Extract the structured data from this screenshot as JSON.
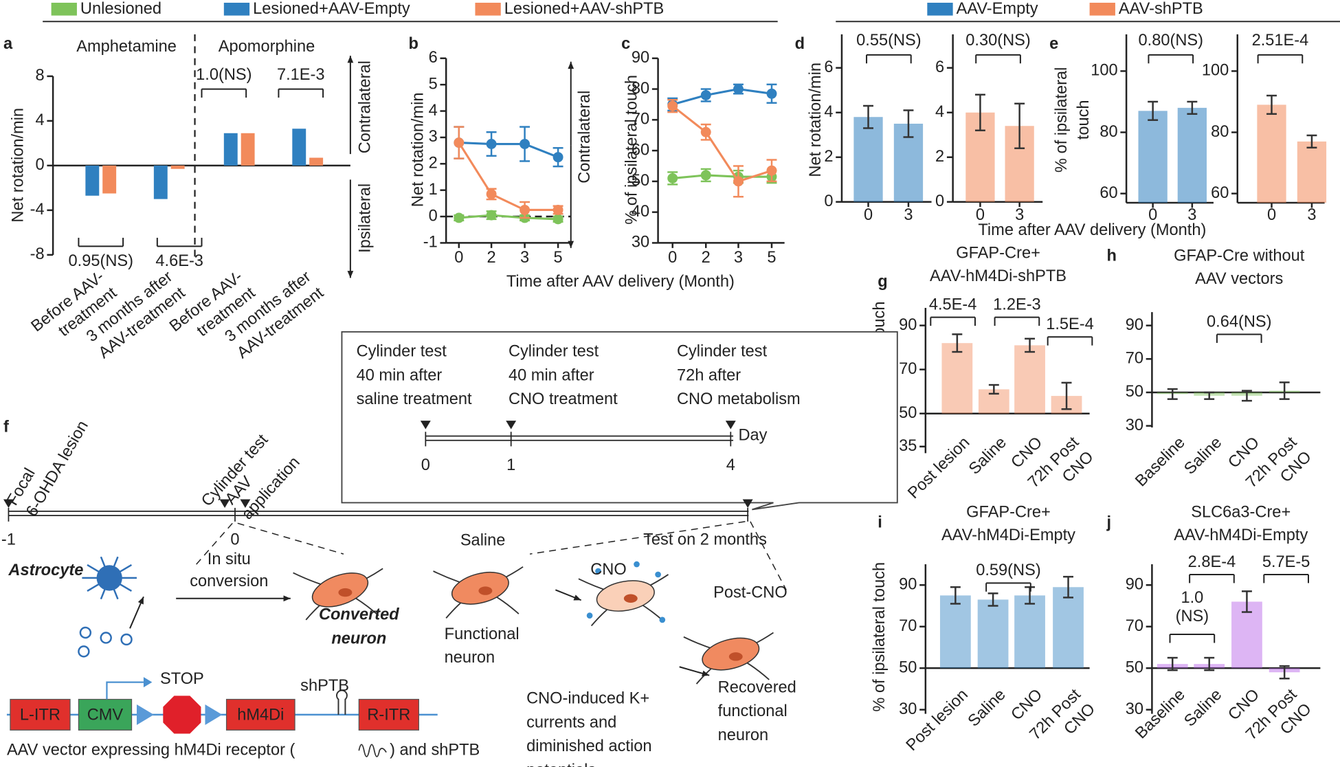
{
  "panel_labels": [
    "a",
    "b",
    "c",
    "d",
    "e",
    "f",
    "g",
    "h",
    "i",
    "j"
  ],
  "chart_data": [
    {
      "type": "bar",
      "group_labels": [
        "Amphetamine",
        "Apomorphine"
      ],
      "categories": [
        "Before AAV-\ntreatment",
        "3 months after\nAAV-treatment",
        "Before AAV-\ntreatment",
        "3 months after\nAAV-treatment"
      ],
      "ylabel": "Net rotation/min",
      "series": [
        {
          "name": "Unlesioned",
          "color": "#7ec35a",
          "values": [
            0,
            0,
            null,
            0
          ]
        },
        {
          "name": "Lesioned+AAV-Empty",
          "color": "#2f80c0",
          "values": [
            -2.7,
            -3.0,
            2.9,
            3.3
          ]
        },
        {
          "name": "Lesioned+AAV-shPTB",
          "color": "#f28a5b",
          "values": [
            -2.5,
            -0.3,
            2.9,
            0.7
          ]
        }
      ],
      "ylim": [
        -8,
        8
      ],
      "yticks": [
        -8,
        -4,
        0,
        4,
        8
      ],
      "annotations": [
        "0.95(NS)",
        "4.6E-3",
        "1.0(NS)",
        "7.1E-3"
      ],
      "side_labels": [
        "Contralateral",
        "Ipsilateral"
      ]
    },
    {
      "type": "line",
      "categories": [
        "0",
        "2",
        "3",
        "5"
      ],
      "xlabel": "Time after AAV delivery (Month)",
      "ylabel": "Net rotation/min",
      "series": [
        {
          "color": "#7ec35a",
          "values": [
            -0.05,
            0.05,
            -0.05,
            -0.1
          ],
          "errors": [
            0.1,
            0.15,
            0.1,
            0.1
          ]
        },
        {
          "color": "#2f80c0",
          "values": [
            2.8,
            2.75,
            2.75,
            2.25
          ],
          "errors": [
            0.6,
            0.45,
            0.65,
            0.35
          ]
        },
        {
          "color": "#f28a5b",
          "values": [
            2.8,
            0.85,
            0.25,
            0.25
          ],
          "errors": [
            0.6,
            0.2,
            0.3,
            0.15
          ]
        }
      ],
      "hline": 0,
      "ylim": [
        -1,
        6
      ],
      "yticks": [
        -1,
        0,
        1,
        2,
        3,
        4,
        5,
        6
      ],
      "side_labels": [
        "Contralateral"
      ]
    },
    {
      "type": "line",
      "categories": [
        "0",
        "2",
        "3",
        "5"
      ],
      "ylabel": "% of ipsilateral touch",
      "series": [
        {
          "color": "#7ec35a",
          "values": [
            51,
            52,
            51.5,
            51.5
          ],
          "errors": [
            2,
            2,
            2,
            2
          ]
        },
        {
          "color": "#2f80c0",
          "values": [
            75,
            78,
            80,
            78.5
          ],
          "errors": [
            2,
            2,
            1.5,
            3
          ]
        },
        {
          "color": "#f28a5b",
          "values": [
            74.5,
            66,
            50,
            53.5
          ],
          "errors": [
            2,
            2.5,
            5,
            3.5
          ]
        }
      ],
      "ylim": [
        30,
        90
      ],
      "yticks": [
        30,
        40,
        50,
        60,
        70,
        80,
        90
      ]
    },
    {
      "type": "bar",
      "categories": [
        "0",
        "3"
      ],
      "ylabel": "Net rotation/min",
      "xlabel": "Time after AAV delivery (Month)",
      "series": [
        {
          "name": "AAV-Empty",
          "color": "#2f80c0",
          "values": [
            3.8,
            3.5
          ],
          "errors": [
            0.5,
            0.6
          ]
        }
      ],
      "ylim": [
        0,
        7.5
      ],
      "yticks": [
        0,
        2,
        4,
        6
      ],
      "annotations": [
        "0.55(NS)"
      ]
    },
    {
      "type": "bar",
      "categories": [
        "0",
        "3"
      ],
      "series": [
        {
          "name": "AAV-shPTB",
          "color": "#f28a5b",
          "values": [
            4.0,
            3.4
          ],
          "errors": [
            0.8,
            1.0
          ]
        }
      ],
      "ylim": [
        0,
        7.5
      ],
      "yticks": [
        0,
        2,
        4,
        6
      ],
      "annotations": [
        "0.30(NS)"
      ]
    },
    {
      "type": "bar",
      "categories": [
        "0",
        "3"
      ],
      "ylabel": "% of ipsilateral\ntouch",
      "series": [
        {
          "color": "#2f80c0",
          "values": [
            87,
            88
          ],
          "errors": [
            3,
            2
          ]
        }
      ],
      "ylim": [
        57,
        112
      ],
      "yticks": [
        60,
        80,
        100
      ],
      "annotations": [
        "0.80(NS)"
      ]
    },
    {
      "type": "bar",
      "categories": [
        "0",
        "3"
      ],
      "series": [
        {
          "color": "#f28a5b",
          "values": [
            89,
            77
          ],
          "errors": [
            3,
            2
          ]
        }
      ],
      "ylim": [
        57,
        112
      ],
      "yticks": [
        60,
        80,
        100
      ],
      "annotations": [
        "2.51E-4"
      ]
    },
    {
      "type": "bar",
      "title": "GFAP-Cre+\nAAV-hM4Di-shPTB",
      "categories": [
        "Post lesion",
        "Saline",
        "CNO",
        "72h Post\nCNO"
      ],
      "ylabel": "% of ipsilateral touch",
      "series": [
        {
          "color": "#f28a5b",
          "values": [
            82,
            61,
            81,
            58
          ],
          "errors": [
            4,
            2,
            3,
            6
          ]
        }
      ],
      "hline": 50,
      "ylim": [
        32,
        98
      ],
      "yticks": [
        35,
        50,
        70,
        90
      ],
      "annotations": [
        "4.5E-4",
        "1.2E-3",
        "1.5E-4"
      ]
    },
    {
      "type": "bar",
      "title": "GFAP-Cre without\nAAV vectors",
      "categories": [
        "Baseline",
        "Saline",
        "CNO",
        "72h Post\nCNO"
      ],
      "series": [
        {
          "color": "#7ec35a",
          "values": [
            49,
            48,
            48,
            51
          ],
          "errors": [
            3,
            2,
            3,
            5
          ]
        }
      ],
      "hline": 50,
      "ylim": [
        29,
        98
      ],
      "yticks": [
        30,
        50,
        70,
        90
      ],
      "annotations": [
        "0.64(NS)"
      ]
    },
    {
      "type": "bar",
      "title": "GFAP-Cre+\nAAV-hM4Di-Empty",
      "categories": [
        "Post lesion",
        "Saline",
        "CNO",
        "72h Post\nCNO"
      ],
      "ylabel": "% of ipsilateral touch",
      "series": [
        {
          "color": "#2f80c0",
          "values": [
            85,
            83,
            85,
            89
          ],
          "errors": [
            4,
            3,
            4,
            5
          ]
        }
      ],
      "hline": 50,
      "ylim": [
        28,
        100
      ],
      "yticks": [
        30,
        50,
        70,
        90
      ],
      "annotations": [
        "0.59(NS)"
      ]
    },
    {
      "type": "bar",
      "title": "SLC6a3-Cre+\nAAV-hM4Di-Empty",
      "categories": [
        "Baseline",
        "Saline",
        "CNO",
        "72h Post\nCNO"
      ],
      "series": [
        {
          "color": "#b45be6",
          "values": [
            52,
            52,
            82,
            48
          ],
          "errors": [
            3,
            3,
            5,
            3
          ]
        }
      ],
      "hline": 50,
      "ylim": [
        28,
        100
      ],
      "yticks": [
        30,
        50,
        70,
        90
      ],
      "annotations": [
        "1.0\n(NS)",
        "2.8E-4",
        "5.7E-5"
      ]
    }
  ],
  "diagram": {
    "schedule": {
      "steps": [
        "Cylinder test\n40 min after\nsaline treatment",
        "Cylinder test\n40 min after\nCNO treatment",
        "Cylinder test\n72h after\nCNO metabolism"
      ],
      "ticks": [
        "0",
        "1",
        "4"
      ],
      "unit": "Day"
    },
    "timeline": {
      "events": [
        "Focal\n6-OHDA lesion",
        "Cylinder test",
        "AAV\napplication"
      ],
      "ticks": [
        "-1",
        "0"
      ]
    },
    "cells": {
      "astrocyte": "Astrocyte",
      "conversion": "In situ\nconversion",
      "converted": "Converted\nneuron",
      "saline": "Saline",
      "test": "Test on 2 months",
      "cno": "CNO",
      "post_cno": "Post-CNO",
      "functional": "Functional\nneuron",
      "cno_effect": "CNO-induced K+\ncurrents and\ndiminished action\npotentials",
      "recovered": "Recovered\nfunctional\nneuron"
    },
    "construct": {
      "elements": [
        "L-ITR",
        "CMV",
        "hM4Di",
        "R-ITR"
      ],
      "stop": "STOP",
      "hairpin": "shPTB",
      "caption": [
        "AAV vector expressing hM4Di receptor (",
        ") and shPTB"
      ]
    }
  }
}
